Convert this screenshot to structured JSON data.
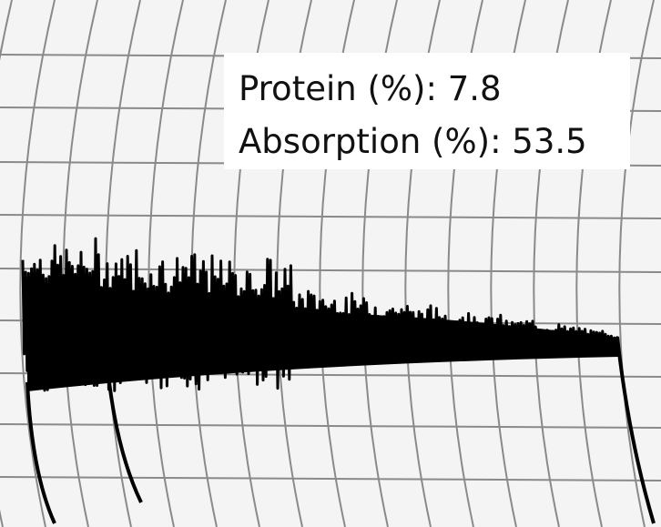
{
  "annotations": [
    "Protein (%): 7.8",
    "Absorption (%): 53.5"
  ]
}
